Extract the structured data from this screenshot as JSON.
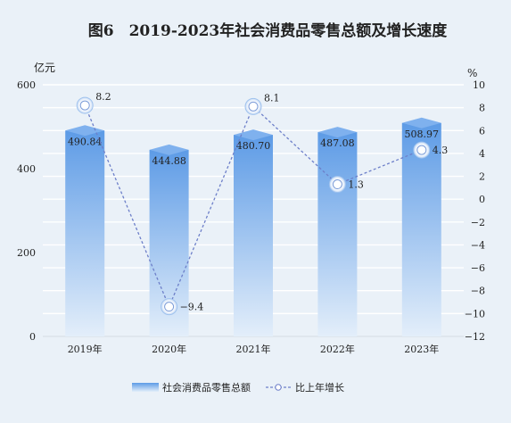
{
  "chart_data": {
    "type": "bar",
    "title": "图6　2019-2023年社会消费品零售总额及增长速度",
    "categories": [
      "2019年",
      "2020年",
      "2021年",
      "2022年",
      "2023年"
    ],
    "y_left_unit": "亿元",
    "y_right_unit": "%",
    "y_left_ticks": [
      "0",
      "200",
      "400",
      "600"
    ],
    "y_right_ticks": [
      "−12",
      "−10",
      "−8",
      "−6",
      "−4",
      "−2",
      "0",
      "2",
      "4",
      "6",
      "8",
      "10"
    ],
    "ylim_left": [
      0,
      600
    ],
    "ylim_right": [
      -12,
      10
    ],
    "series": [
      {
        "name": "社会消费品零售总额",
        "type": "bar",
        "axis": "left",
        "values": [
          490.84,
          444.88,
          480.7,
          487.08,
          508.97
        ],
        "labels": [
          "490.84",
          "444.88",
          "480.70",
          "487.08",
          "508.97"
        ]
      },
      {
        "name": "比上年增长",
        "type": "line",
        "axis": "right",
        "values": [
          8.2,
          -9.4,
          8.1,
          1.3,
          4.3
        ],
        "labels": [
          "8.2",
          "−9.4",
          "8.1",
          "1.3",
          "4.3"
        ]
      }
    ],
    "grid": true,
    "legend_position": "bottom"
  },
  "colors": {
    "background": "#eaf1f8",
    "bar_top": "#5d9be6",
    "bar_bottom": "#dce9f7",
    "bar_cap": "#7fb1ee",
    "line": "#6d7fc9",
    "gridline": "#ffffff",
    "text": "#222222"
  }
}
